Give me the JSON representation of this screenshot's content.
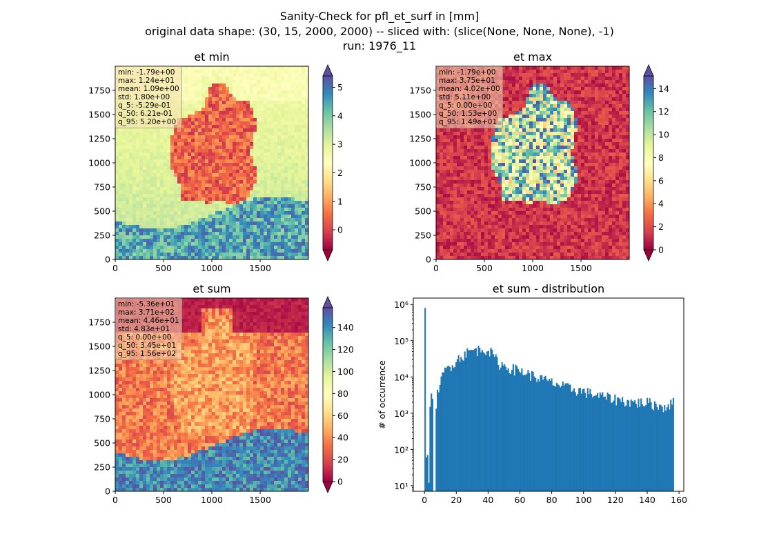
{
  "figure": {
    "title_line1": "Sanity-Check for pfl_et_surf in [mm]",
    "title_line2": "original data shape: (30, 15, 2000, 2000) -- sliced with: (slice(None, None, None), -1)",
    "title_line3": "run: 1976_11"
  },
  "chart_data": [
    {
      "type": "heatmap",
      "title": "et min",
      "xticks": [
        0,
        500,
        1000,
        1500
      ],
      "yticks": [
        0,
        250,
        500,
        750,
        1000,
        1250,
        1500,
        1750
      ],
      "xlim": [
        0,
        2000
      ],
      "ylim": [
        0,
        2000
      ],
      "colorbar": {
        "colormap": "Spectral",
        "range": [
          -0.7,
          5.4
        ],
        "ticks": [
          0,
          1,
          2,
          3,
          4,
          5
        ],
        "extend": "both"
      },
      "stats": [
        "min: -1.79e+00",
        "max: 1.24e+01",
        "mean: 1.09e+00",
        "std: 1.80e+00",
        "q_5: -5.29e-01",
        "q_50: 6.21e-01",
        "q_95: 5.20e+00"
      ]
    },
    {
      "type": "heatmap",
      "title": "et max",
      "xticks": [
        0,
        500,
        1000,
        1500
      ],
      "yticks": [
        0,
        250,
        500,
        750,
        1000,
        1250,
        1500,
        1750
      ],
      "xlim": [
        0,
        2000
      ],
      "ylim": [
        0,
        2000
      ],
      "colorbar": {
        "colormap": "Spectral",
        "range": [
          0,
          15.1
        ],
        "ticks": [
          0,
          2,
          4,
          6,
          8,
          10,
          12,
          14
        ],
        "extend": "both"
      },
      "stats": [
        "min: -1.79e+00",
        "max: 3.75e+01",
        "mean: 4.02e+00",
        "std: 5.11e+00",
        "q_5: 0.00e+00",
        "q_50: 1.53e+00",
        "q_95: 1.49e+01"
      ]
    },
    {
      "type": "heatmap",
      "title": "et sum",
      "xticks": [
        0,
        500,
        1000,
        1500
      ],
      "yticks": [
        0,
        250,
        500,
        750,
        1000,
        1250,
        1500,
        1750
      ],
      "xlim": [
        0,
        2000
      ],
      "ylim": [
        0,
        2000
      ],
      "colorbar": {
        "colormap": "Spectral",
        "range": [
          0,
          158
        ],
        "ticks": [
          0,
          20,
          40,
          60,
          80,
          100,
          120,
          140
        ],
        "extend": "both"
      },
      "stats": [
        "min: -5.36e+01",
        "max: 3.71e+02",
        "mean: 4.46e+01",
        "std: 4.83e+01",
        "q_5: 0.00e+00",
        "q_50: 3.45e+01",
        "q_95: 1.56e+02"
      ]
    },
    {
      "type": "bar",
      "title": "et sum - distribution",
      "xlabel": "",
      "ylabel": "# of occurrence",
      "xlim": [
        -7,
        163
      ],
      "xticks": [
        0,
        20,
        40,
        60,
        80,
        100,
        120,
        140,
        160
      ],
      "yscale": "log",
      "ylim": [
        7,
        1500000
      ],
      "yticks": [
        10,
        100,
        1000,
        10000,
        100000,
        1000000
      ],
      "ytick_labels": [
        "10¹",
        "10²",
        "10³",
        "10⁴",
        "10⁵",
        "10⁶"
      ],
      "color": "#1f77b4",
      "histogram": {
        "bin_start": 0,
        "bin_width": 0.78,
        "spikes": [
          [
            0,
            800000
          ],
          [
            1,
            60
          ],
          [
            2,
            70
          ],
          [
            3,
            12
          ],
          [
            4,
            1500
          ],
          [
            5,
            3500
          ],
          [
            6,
            2500
          ]
        ],
        "profile": [
          [
            7,
            2000
          ],
          [
            8,
            4000
          ],
          [
            10,
            8000
          ],
          [
            12,
            14000
          ],
          [
            15,
            20000
          ],
          [
            18,
            25000
          ],
          [
            20,
            30000
          ],
          [
            25,
            45000
          ],
          [
            30,
            55000
          ],
          [
            35,
            58000
          ],
          [
            38,
            60000
          ],
          [
            40,
            55000
          ],
          [
            43,
            40000
          ],
          [
            46,
            25000
          ],
          [
            50,
            20000
          ],
          [
            60,
            15000
          ],
          [
            70,
            10000
          ],
          [
            80,
            7000
          ],
          [
            90,
            5000
          ],
          [
            100,
            4000
          ],
          [
            110,
            3000
          ],
          [
            120,
            2500
          ],
          [
            130,
            2000
          ],
          [
            140,
            2000
          ],
          [
            150,
            1500
          ],
          [
            155.5,
            2000
          ]
        ],
        "end": 156
      }
    }
  ]
}
